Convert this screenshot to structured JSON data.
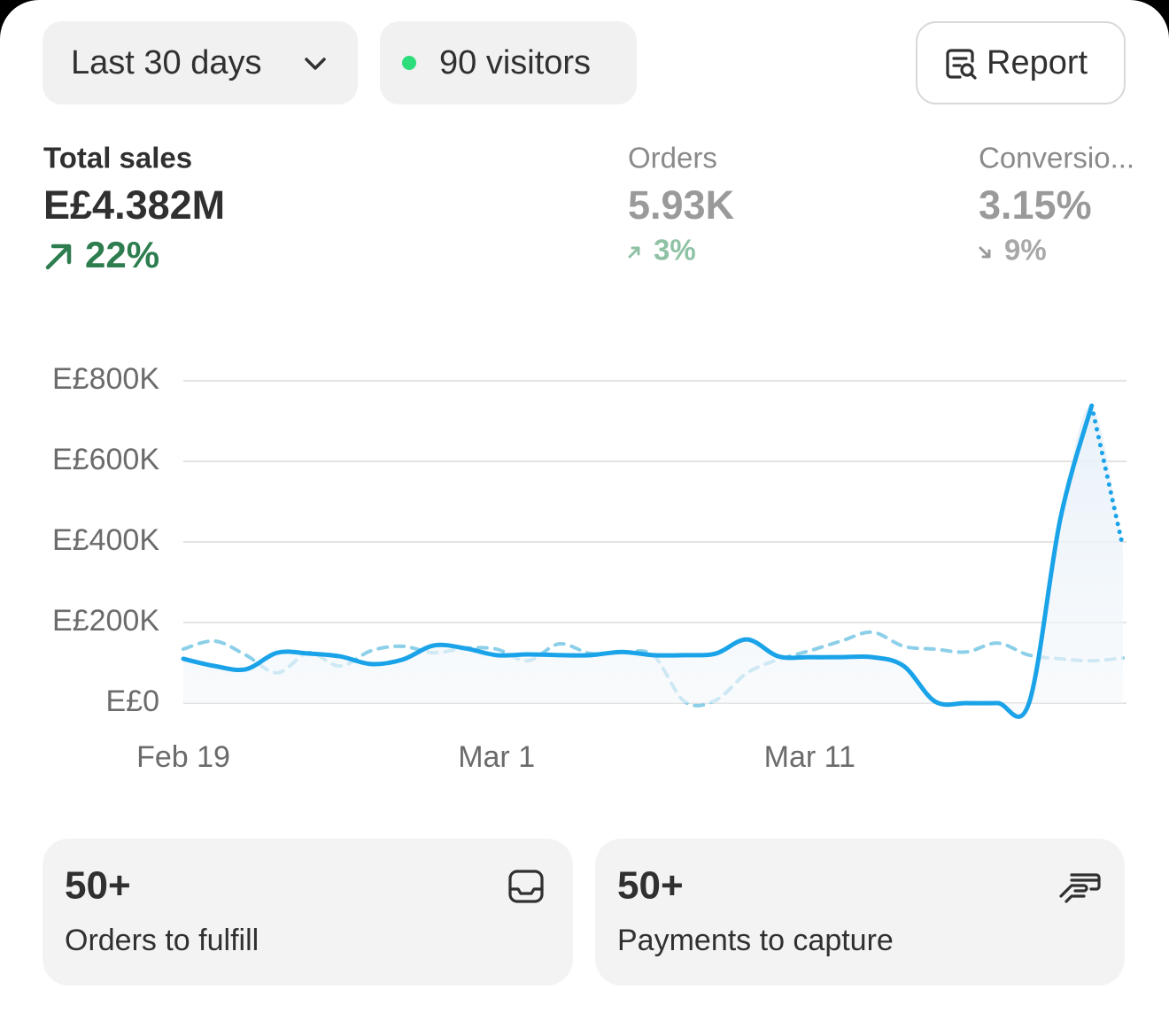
{
  "header": {
    "date_range": "Last 30 days",
    "visitors": "90 visitors",
    "report": "Report"
  },
  "metrics": [
    {
      "label": "Total sales",
      "value": "E£4.382M",
      "change": "22%"
    },
    {
      "label": "Orders",
      "value": "5.93K",
      "change": "3%"
    },
    {
      "label": "Conversio...",
      "value": "3.15%",
      "change": "9%"
    }
  ],
  "chart_data": {
    "type": "line",
    "categories": [
      "Feb 19",
      null,
      null,
      null,
      null,
      null,
      null,
      null,
      null,
      null,
      "Mar 1",
      null,
      null,
      null,
      null,
      null,
      null,
      null,
      null,
      null,
      "Mar 11",
      null,
      null,
      null,
      null,
      null,
      null,
      null,
      null,
      null,
      null
    ],
    "series": [
      {
        "color": "#1aa3e8",
        "values": [
          110000,
          92000,
          84000,
          125000,
          123000,
          116000,
          97000,
          108000,
          143000,
          136000,
          119000,
          121000,
          119000,
          119000,
          127000,
          119000,
          119000,
          123000,
          158000,
          116000,
          114000,
          114000,
          114000,
          92000,
          4000,
          0,
          0,
          0,
          457000,
          738000,
          387000
        ]
      },
      {
        "color": "#8ccfe8",
        "values": [
          134000,
          154000,
          119000,
          75000,
          125000,
          92000,
          130000,
          141000,
          125000,
          136000,
          134000,
          105000,
          147000,
          123000,
          125000,
          119000,
          4000,
          7000,
          75000,
          108000,
          130000,
          154000,
          176000,
          141000,
          134000,
          127000,
          149000,
          119000,
          110000,
          105000,
          112000
        ]
      }
    ],
    "ylim": [
      0,
      800000
    ],
    "yticks": [
      {
        "value": 0,
        "label": "E£0"
      },
      {
        "value": 200000,
        "label": "E£200K"
      },
      {
        "value": 400000,
        "label": "E£400K"
      },
      {
        "value": 600000,
        "label": "E£600K"
      },
      {
        "value": 800000,
        "label": "E£800K"
      }
    ],
    "grid": true
  },
  "cards": [
    {
      "count": "50+",
      "label": "Orders to fulfill"
    },
    {
      "count": "50+",
      "label": "Payments to capture"
    }
  ]
}
